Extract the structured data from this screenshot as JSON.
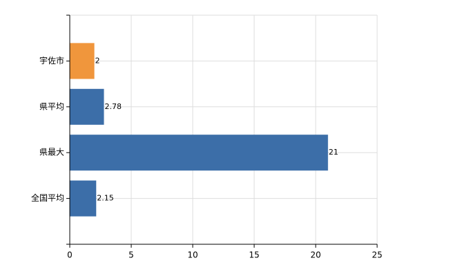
{
  "chart_data": {
    "type": "bar",
    "orientation": "horizontal",
    "categories": [
      "宇佐市",
      "県平均",
      "県最大",
      "全国平均"
    ],
    "values": [
      2,
      2.78,
      21,
      2.15
    ],
    "colors": [
      "#f0963c",
      "#3c6ea8",
      "#3c6ea8",
      "#3c6ea8"
    ],
    "xlim": [
      0,
      25
    ],
    "xticks": [
      0,
      5,
      10,
      15,
      20,
      25
    ],
    "grid": true
  }
}
